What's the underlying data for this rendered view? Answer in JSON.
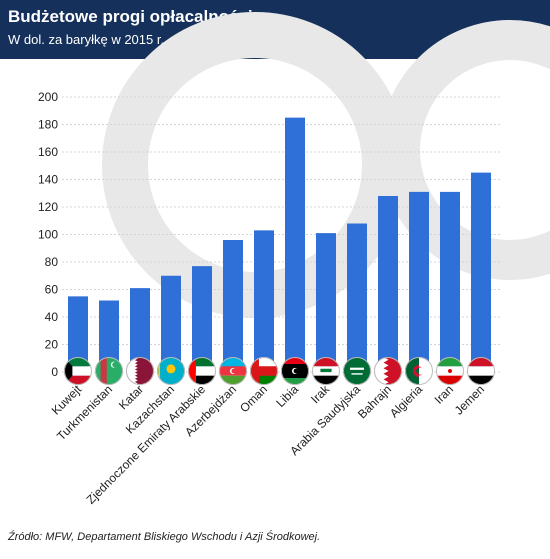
{
  "header": {
    "title": "Budżetowe progi opłacalności",
    "subtitle": "W dol. za baryłkę w 2015 r."
  },
  "footer": {
    "source": "Źródło: MFW, Departament Bliskiego Wschodu i Azji Środkowej."
  },
  "colors": {
    "header_bg": "#15305a",
    "bar": "#2f6fd8",
    "grid": "#d4d4d4",
    "watermark": "#e8e8e8"
  },
  "chart_data": {
    "type": "bar",
    "title": "Budżetowe progi opłacalności",
    "subtitle": "W dol. za baryłkę w 2015 r.",
    "xlabel": "",
    "ylabel": "",
    "ylim": [
      0,
      200
    ],
    "yticks": [
      0,
      20,
      40,
      60,
      80,
      100,
      120,
      140,
      160,
      180,
      200
    ],
    "grid": true,
    "categories": [
      "Kuwejt",
      "Turkmenistan",
      "Katar",
      "Kazachstan",
      "Zjednoczone Emiraty Arabskie",
      "Azerbejdżan",
      "Oman",
      "Libia",
      "Irak",
      "Arabia Saudyjska",
      "Bahrajn",
      "Algieria",
      "Iran",
      "Jemen"
    ],
    "values": [
      55,
      52,
      61,
      70,
      77,
      96,
      103,
      185,
      101,
      108,
      128,
      131,
      131,
      145
    ],
    "flags": [
      "kuwait-flag-icon",
      "turkmenistan-flag-icon",
      "qatar-flag-icon",
      "kazakhstan-flag-icon",
      "uae-flag-icon",
      "azerbaijan-flag-icon",
      "oman-flag-icon",
      "libya-flag-icon",
      "iraq-flag-icon",
      "saudi-arabia-flag-icon",
      "bahrain-flag-icon",
      "algeria-flag-icon",
      "iran-flag-icon",
      "yemen-flag-icon"
    ]
  }
}
